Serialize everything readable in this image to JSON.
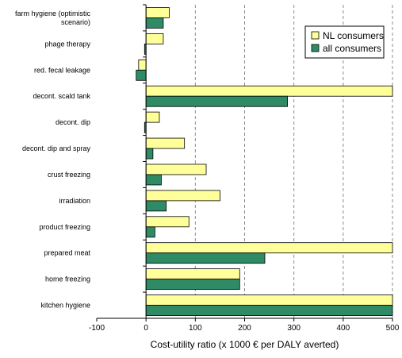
{
  "chart_data": {
    "type": "bar",
    "orientation": "horizontal",
    "categories": [
      [
        "farm hygiene (optimistic",
        "scenario)"
      ],
      [
        "phage therapy"
      ],
      [
        "red. fecal leakage"
      ],
      [
        "decont. scald tank"
      ],
      [
        "decont. dip"
      ],
      [
        "decont. dip and spray"
      ],
      [
        "crust freezing"
      ],
      [
        "irradiation"
      ],
      [
        "product freezing"
      ],
      [
        "prepared meat"
      ],
      [
        "home freezing"
      ],
      [
        "kitchen hygiene"
      ]
    ],
    "series": [
      {
        "name": "NL consumers",
        "color": "#ffff99",
        "values": [
          47,
          35,
          -15,
          520,
          27,
          78,
          122,
          150,
          87,
          520,
          190,
          520
        ]
      },
      {
        "name": "all consumers",
        "color": "#2e8b66",
        "values": [
          35,
          -3,
          -20,
          287,
          -3,
          14,
          31,
          41,
          18,
          241,
          190,
          520
        ]
      }
    ],
    "xlim": [
      -100,
      500
    ],
    "xticks": [
      -100,
      0,
      100,
      200,
      300,
      400,
      500
    ],
    "xlabel": "Cost-utility ratio (x 1000 € per DALY averted)",
    "grid": "vertical-dashed",
    "legend_position": "top-right"
  }
}
